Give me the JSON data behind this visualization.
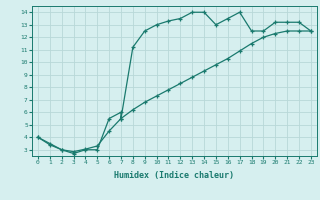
{
  "line1_x": [
    0,
    1,
    2,
    3,
    4,
    5,
    6,
    7,
    7,
    8,
    9,
    10,
    11,
    12,
    13,
    14,
    15,
    16,
    17,
    18,
    19,
    20,
    21,
    22,
    23
  ],
  "line1_y": [
    4.0,
    3.5,
    3.0,
    2.7,
    3.0,
    3.0,
    5.5,
    6.0,
    5.5,
    11.2,
    12.5,
    13.0,
    13.3,
    13.5,
    14.0,
    14.0,
    13.0,
    13.5,
    14.0,
    12.5,
    12.5,
    13.2,
    13.2,
    13.2,
    12.5
  ],
  "line2_x": [
    0,
    1,
    2,
    3,
    4,
    5,
    6,
    7,
    8,
    9,
    10,
    11,
    12,
    13,
    14,
    15,
    16,
    17,
    18,
    19,
    20,
    21,
    22,
    23
  ],
  "line2_y": [
    4.0,
    3.4,
    3.0,
    2.85,
    3.05,
    3.3,
    4.5,
    5.5,
    6.2,
    6.8,
    7.3,
    7.8,
    8.3,
    8.8,
    9.3,
    9.8,
    10.3,
    10.9,
    11.5,
    12.0,
    12.3,
    12.5,
    12.5,
    12.5
  ],
  "line_color": "#1a7a6e",
  "bg_color": "#d6efef",
  "grid_color": "#b8d8d8",
  "xlabel": "Humidex (Indice chaleur)",
  "ytick_vals": [
    3,
    4,
    5,
    6,
    7,
    8,
    9,
    10,
    11,
    12,
    13,
    14
  ],
  "xlim": [
    -0.5,
    23.5
  ],
  "ylim": [
    2.5,
    14.5
  ],
  "xtick_labels": [
    "0",
    "1",
    "2",
    "3",
    "4",
    "5",
    "6",
    "7",
    "8",
    "9",
    "10",
    "11",
    "12",
    "13",
    "14",
    "15",
    "16",
    "17",
    "18",
    "19",
    "20",
    "21",
    "22",
    "23"
  ]
}
